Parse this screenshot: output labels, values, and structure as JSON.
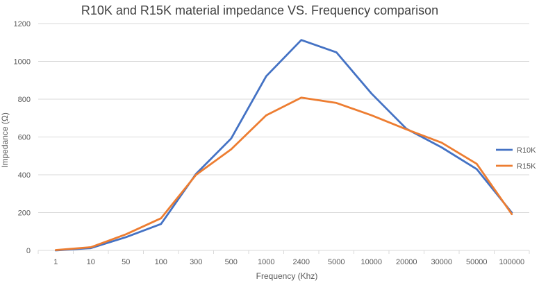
{
  "chart_data": {
    "type": "line",
    "title": "R10K and R15K material impedance VS. Frequency comparison",
    "xlabel": "Frequency (Khz)",
    "ylabel": "Impedance (Ω)",
    "categories": [
      "1",
      "10",
      "50",
      "100",
      "300",
      "500",
      "1000",
      "2400",
      "5000",
      "10000",
      "20000",
      "30000",
      "50000",
      "100000"
    ],
    "ylim": [
      0,
      1200
    ],
    "yticks": [
      0,
      200,
      400,
      600,
      800,
      1000,
      1200
    ],
    "grid": true,
    "legend_position": "right",
    "series": [
      {
        "name": "R10K",
        "color": "#4472c4",
        "values": [
          0,
          12,
          70,
          140,
          405,
          592,
          922,
          1113,
          1048,
          830,
          643,
          545,
          430,
          200
        ]
      },
      {
        "name": "R15K",
        "color": "#ed7d31",
        "values": [
          2,
          17,
          85,
          170,
          400,
          535,
          715,
          808,
          780,
          715,
          640,
          570,
          458,
          192
        ]
      }
    ]
  }
}
